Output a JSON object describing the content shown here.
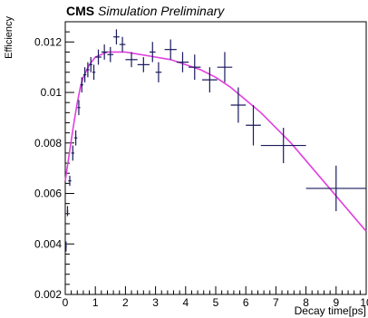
{
  "header": {
    "experiment": "CMS",
    "subtitle": "Simulation Preliminary"
  },
  "chart_data": {
    "type": "scatter",
    "title": "CMS Simulation Preliminary",
    "xlabel": "Decay time[ps]",
    "ylabel": "Efficiency",
    "xlim": [
      0,
      10
    ],
    "ylim": [
      0.002,
      0.0128
    ],
    "x_ticks": [
      0,
      1,
      2,
      3,
      4,
      5,
      6,
      7,
      8,
      9,
      10
    ],
    "x_tick_labels": [
      "0",
      "1",
      "2",
      "3",
      "4",
      "5",
      "6",
      "7",
      "8",
      "9",
      "10"
    ],
    "y_ticks": [
      0.002,
      0.004,
      0.006,
      0.008,
      0.01,
      0.012
    ],
    "y_tick_labels": [
      "0.002",
      "0.004",
      "0.006",
      "0.008",
      "0.01",
      "0.012"
    ],
    "grid": false,
    "legend": "none",
    "colors": {
      "data": "#1a1a5e",
      "fit": "#e040e0",
      "frame": "#000000"
    },
    "series": [
      {
        "type": "errorbar",
        "points": [
          {
            "x": 0.025,
            "y": 0.0039,
            "xerr": 0.025,
            "yerr": 0.0002
          },
          {
            "x": 0.075,
            "y": 0.0053,
            "xerr": 0.025,
            "yerr": 0.0002
          },
          {
            "x": 0.15,
            "y": 0.0065,
            "xerr": 0.05,
            "yerr": 0.0002
          },
          {
            "x": 0.25,
            "y": 0.0076,
            "xerr": 0.05,
            "yerr": 0.0003
          },
          {
            "x": 0.35,
            "y": 0.0082,
            "xerr": 0.05,
            "yerr": 0.0003
          },
          {
            "x": 0.45,
            "y": 0.0094,
            "xerr": 0.05,
            "yerr": 0.0003
          },
          {
            "x": 0.55,
            "y": 0.0103,
            "xerr": 0.05,
            "yerr": 0.0003
          },
          {
            "x": 0.65,
            "y": 0.0107,
            "xerr": 0.05,
            "yerr": 0.0003
          },
          {
            "x": 0.75,
            "y": 0.0109,
            "xerr": 0.05,
            "yerr": 0.0003
          },
          {
            "x": 0.85,
            "y": 0.0111,
            "xerr": 0.05,
            "yerr": 0.0003
          },
          {
            "x": 0.95,
            "y": 0.0108,
            "xerr": 0.05,
            "yerr": 0.0003
          },
          {
            "x": 1.1,
            "y": 0.0114,
            "xerr": 0.1,
            "yerr": 0.0003
          },
          {
            "x": 1.3,
            "y": 0.0116,
            "xerr": 0.1,
            "yerr": 0.0003
          },
          {
            "x": 1.5,
            "y": 0.0115,
            "xerr": 0.1,
            "yerr": 0.0003
          },
          {
            "x": 1.7,
            "y": 0.0122,
            "xerr": 0.1,
            "yerr": 0.0003
          },
          {
            "x": 1.9,
            "y": 0.0119,
            "xerr": 0.1,
            "yerr": 0.0003
          },
          {
            "x": 2.2,
            "y": 0.0113,
            "xerr": 0.2,
            "yerr": 0.0003
          },
          {
            "x": 2.6,
            "y": 0.0111,
            "xerr": 0.2,
            "yerr": 0.0003
          },
          {
            "x": 2.9,
            "y": 0.0116,
            "xerr": 0.1,
            "yerr": 0.0004
          },
          {
            "x": 3.1,
            "y": 0.0108,
            "xerr": 0.1,
            "yerr": 0.0004
          },
          {
            "x": 3.5,
            "y": 0.0117,
            "xerr": 0.2,
            "yerr": 0.0004
          },
          {
            "x": 3.9,
            "y": 0.0112,
            "xerr": 0.2,
            "yerr": 0.0004
          },
          {
            "x": 4.3,
            "y": 0.011,
            "xerr": 0.2,
            "yerr": 0.0005
          },
          {
            "x": 4.8,
            "y": 0.0105,
            "xerr": 0.25,
            "yerr": 0.0005
          },
          {
            "x": 5.3,
            "y": 0.011,
            "xerr": 0.25,
            "yerr": 0.0006
          },
          {
            "x": 5.75,
            "y": 0.0095,
            "xerr": 0.25,
            "yerr": 0.0007
          },
          {
            "x": 6.25,
            "y": 0.0087,
            "xerr": 0.25,
            "yerr": 0.0008
          },
          {
            "x": 7.25,
            "y": 0.0079,
            "xerr": 0.75,
            "yerr": 0.0007
          },
          {
            "x": 9.0,
            "y": 0.0062,
            "xerr": 1.0,
            "yerr": 0.0009
          }
        ]
      },
      {
        "type": "fit",
        "x": [
          0,
          0.1,
          0.2,
          0.3,
          0.4,
          0.5,
          0.6,
          0.8,
          1.0,
          1.2,
          1.4,
          1.6,
          1.8,
          2.0,
          2.5,
          3.0,
          3.5,
          4.0,
          4.5,
          5.0,
          5.5,
          6.0,
          6.5,
          7.0,
          7.5,
          8.0,
          8.5,
          9.0,
          9.5,
          10.0
        ],
        "y": [
          0.0065,
          0.0073,
          0.0081,
          0.0089,
          0.0096,
          0.0102,
          0.0106,
          0.0111,
          0.0114,
          0.0115,
          0.0116,
          0.0116,
          0.0116,
          0.0116,
          0.0115,
          0.0114,
          0.0113,
          0.0111,
          0.0109,
          0.0106,
          0.0102,
          0.0097,
          0.0092,
          0.0086,
          0.008,
          0.0073,
          0.0066,
          0.0059,
          0.0052,
          0.0045
        ]
      }
    ]
  }
}
